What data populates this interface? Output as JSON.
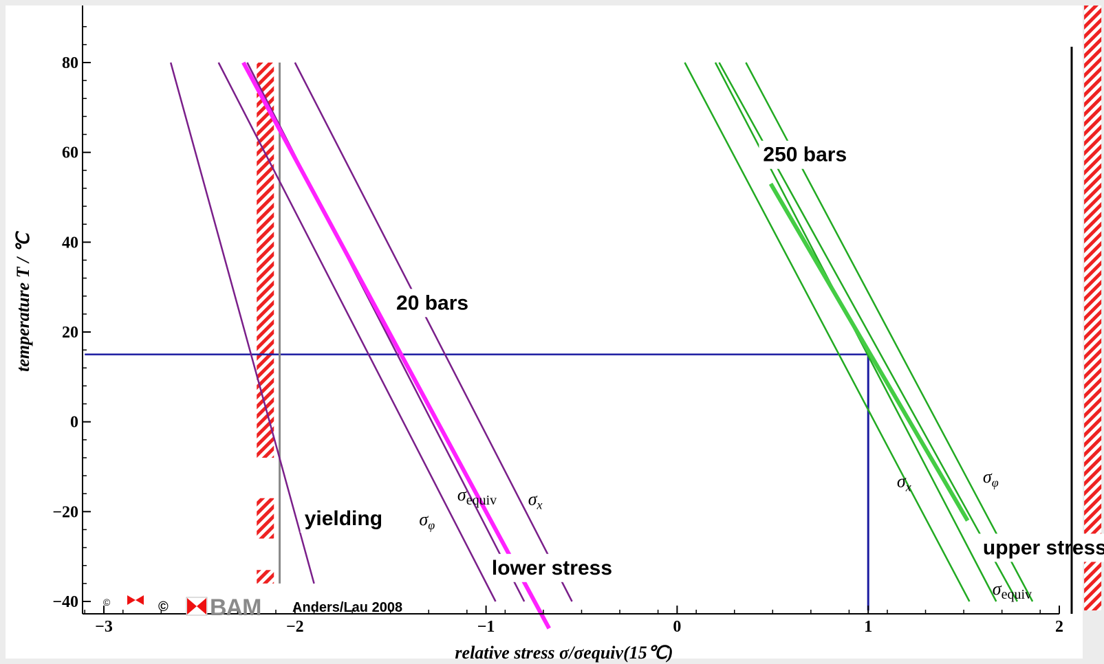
{
  "chart_data": {
    "type": "line",
    "xlabel": "relative stress σ/σequiv(15℃)",
    "ylabel": "temperature T / ℃",
    "xlim": [
      -3.1,
      2.1
    ],
    "ylim": [
      -42,
      94
    ],
    "x_ticks": [
      -3,
      -2,
      -1,
      0,
      1,
      2
    ],
    "y_ticks": [
      -40,
      -20,
      0,
      20,
      40,
      60,
      80
    ],
    "x_tick_labels": [
      "−3",
      "−2",
      "−1",
      "0",
      "1",
      "2"
    ],
    "y_tick_labels": [
      "−40",
      "−20",
      "0",
      "20",
      "40",
      "60",
      "80"
    ],
    "reference_lines": [
      {
        "kind": "horizontal",
        "y": 15,
        "x_from": -3.1,
        "x_to": 1.0,
        "color": "#1a1aa0"
      },
      {
        "kind": "vertical",
        "x": 1.0,
        "y_from": -42,
        "y_to": 15,
        "color": "#1a1aa0"
      },
      {
        "kind": "vertical",
        "x": -2.08,
        "y_from": -36,
        "y_to": 80,
        "color": "#888888"
      }
    ],
    "series": [
      {
        "group": "20 bars",
        "color": "#7a1f8a",
        "width": 2.5,
        "points": [
          [
            -2.65,
            80
          ],
          [
            -1.9,
            -36
          ]
        ]
      },
      {
        "group": "20 bars",
        "color": "#7a1f8a",
        "width": 2.5,
        "points": [
          [
            -2.4,
            80
          ],
          [
            -0.95,
            -40
          ]
        ]
      },
      {
        "group": "20 bars",
        "color": "#7a1f8a",
        "width": 2.5,
        "points": [
          [
            -2.25,
            80
          ],
          [
            -0.8,
            -40
          ]
        ]
      },
      {
        "group": "20 bars",
        "color": "#7a1f8a",
        "width": 2.5,
        "points": [
          [
            -2.0,
            80
          ],
          [
            -0.55,
            -40
          ]
        ]
      },
      {
        "group": "20 bars",
        "color": "#ff22ff",
        "width": 6,
        "points": [
          [
            -2.27,
            80
          ],
          [
            -0.67,
            -46
          ]
        ]
      },
      {
        "group": "250 bars",
        "color": "#22aa22",
        "width": 2.5,
        "points": [
          [
            0.04,
            80
          ],
          [
            1.53,
            -40
          ]
        ]
      },
      {
        "group": "250 bars",
        "color": "#22aa22",
        "width": 2.5,
        "points": [
          [
            0.2,
            80
          ],
          [
            1.67,
            -40
          ]
        ]
      },
      {
        "group": "250 bars",
        "color": "#22aa22",
        "width": 2.5,
        "points": [
          [
            0.22,
            80
          ],
          [
            1.78,
            -40
          ]
        ]
      },
      {
        "group": "250 bars",
        "color": "#22aa22",
        "width": 2.5,
        "points": [
          [
            0.36,
            80
          ],
          [
            1.86,
            -40
          ]
        ]
      },
      {
        "group": "250 bars",
        "color": "#44cc44",
        "width": 6,
        "points": [
          [
            0.49,
            53
          ],
          [
            1.52,
            -22
          ]
        ]
      }
    ],
    "hatched_bands": [
      {
        "x_from": -2.2,
        "x_to": -2.11,
        "y_from": -36,
        "y_to": 80,
        "gaps": [
          [
            -33,
            -26
          ],
          [
            -17,
            -8
          ]
        ],
        "label": "yielding"
      },
      {
        "x_from": 2.13,
        "x_to": 2.22,
        "y_from": -42,
        "y_to": 94,
        "gaps": [],
        "label": ""
      }
    ],
    "annotations": [
      {
        "id": "bars20",
        "text": "20 bars",
        "bold": true,
        "x": -1.47,
        "y": 25
      },
      {
        "id": "bars250",
        "text": "250 bars",
        "bold": true,
        "x": 0.45,
        "y": 58
      },
      {
        "id": "yielding",
        "text": "yielding",
        "bold": true,
        "x": -1.95,
        "y": -23
      },
      {
        "id": "lower",
        "text": "lower  stress",
        "bold": true,
        "x": -0.97,
        "y": -34
      },
      {
        "id": "upper",
        "text": "upper stress",
        "bold": true,
        "x": 1.6,
        "y": -29.5
      },
      {
        "id": "sphi20",
        "text": "σφ",
        "sub": "φ",
        "x": -1.35,
        "y": -23
      },
      {
        "id": "seq20",
        "text": "σequiv",
        "sub": "equiv",
        "x": -1.15,
        "y": -17.5
      },
      {
        "id": "sx20",
        "text": "σx",
        "sub": "x",
        "x": -0.78,
        "y": -18.5
      },
      {
        "id": "sx250",
        "text": "σx",
        "sub": "x",
        "x": 1.15,
        "y": -14.5
      },
      {
        "id": "sphi250",
        "text": "σφ",
        "sub": "φ",
        "x": 1.6,
        "y": -13.5
      },
      {
        "id": "seq250",
        "text": "σequiv",
        "sub": "equiv",
        "x": 1.65,
        "y": -38.5
      }
    ],
    "grid": false,
    "legend": "none"
  },
  "watermark": {
    "copyright_small": "©",
    "copyright": "©",
    "brand": "BAM",
    "credit": "Anders/Lau 2008"
  }
}
